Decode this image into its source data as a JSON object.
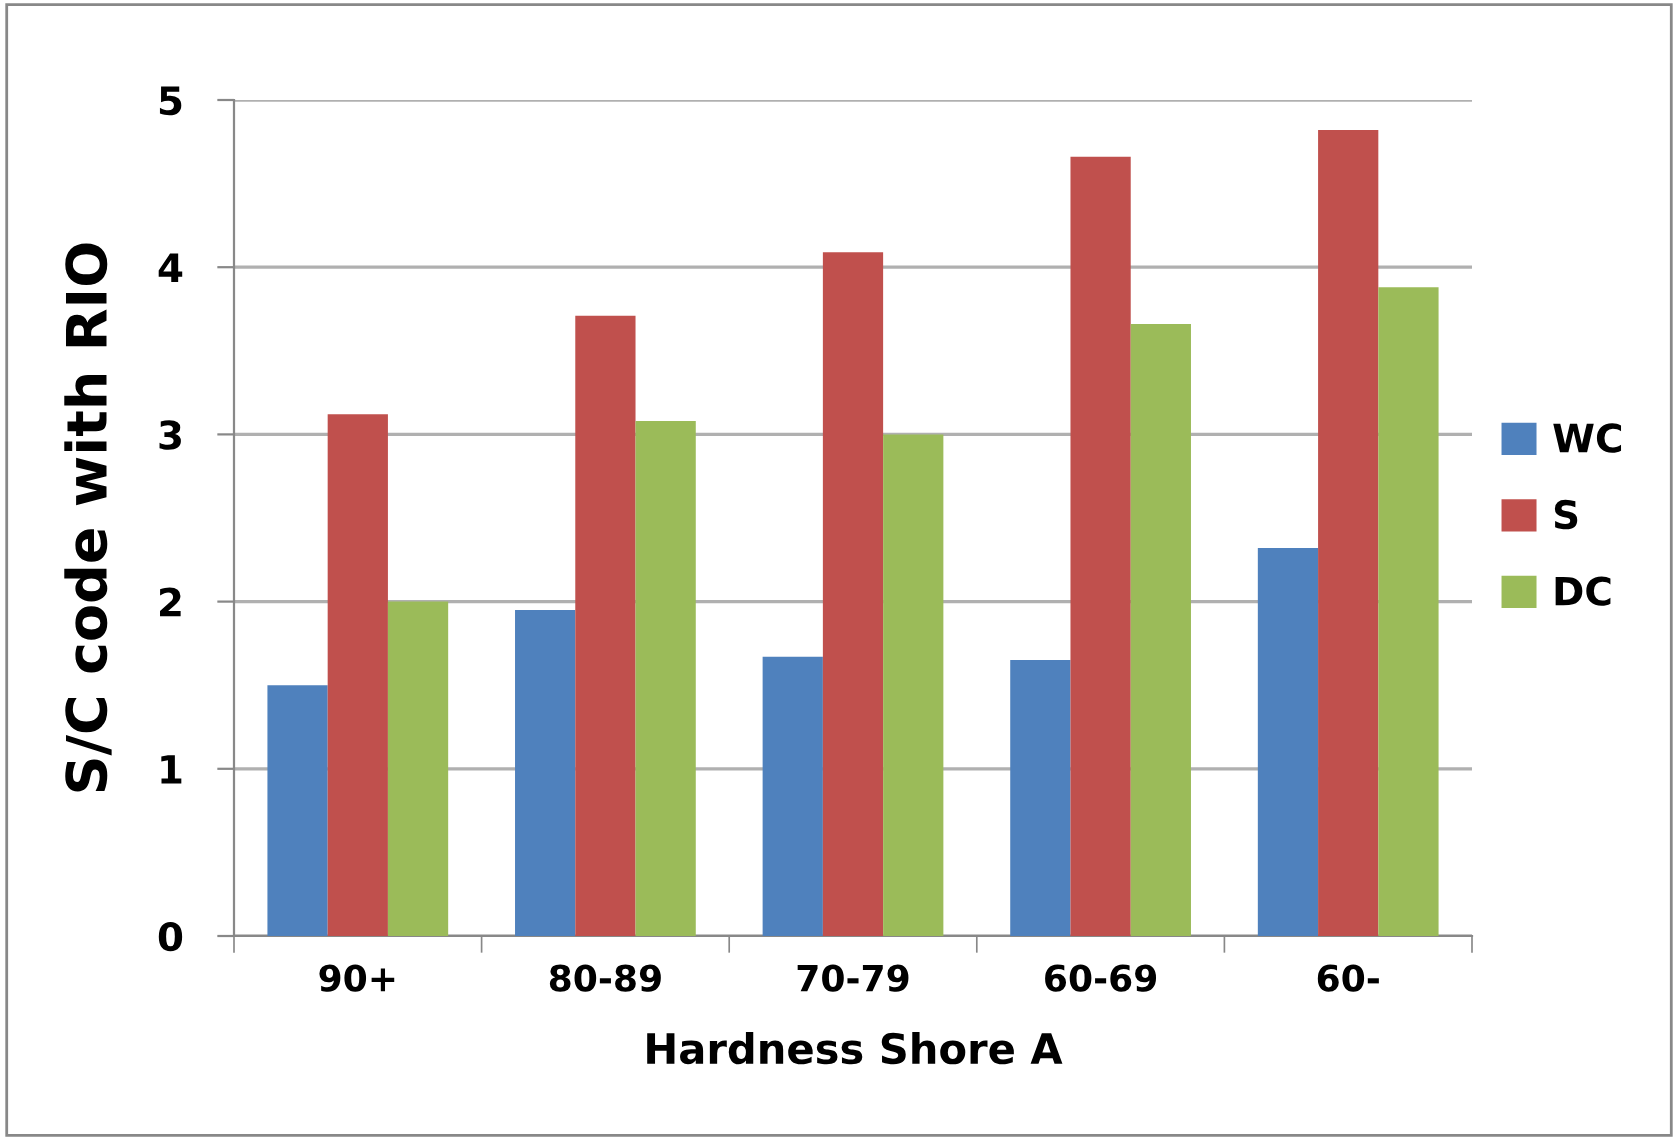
{
  "chart_data": {
    "type": "bar",
    "xlabel": "Hardness Shore A",
    "ylabel": "S/C code with RIO",
    "categories": [
      "90+",
      "80-89",
      "70-79",
      "60-69",
      "60-"
    ],
    "series": [
      {
        "name": "WC",
        "color": "#4f81bd",
        "values": [
          1.5,
          1.95,
          1.67,
          1.65,
          2.32
        ]
      },
      {
        "name": "S",
        "color": "#c0504d",
        "values": [
          3.12,
          3.71,
          4.09,
          4.66,
          4.82
        ]
      },
      {
        "name": "DC",
        "color": "#9bbb59",
        "values": [
          2.0,
          3.08,
          3.0,
          3.66,
          3.88
        ]
      }
    ],
    "ylim": [
      0,
      5
    ],
    "yticks": [
      0,
      1,
      2,
      3,
      4,
      5
    ],
    "grid": "y",
    "legend": "right"
  }
}
